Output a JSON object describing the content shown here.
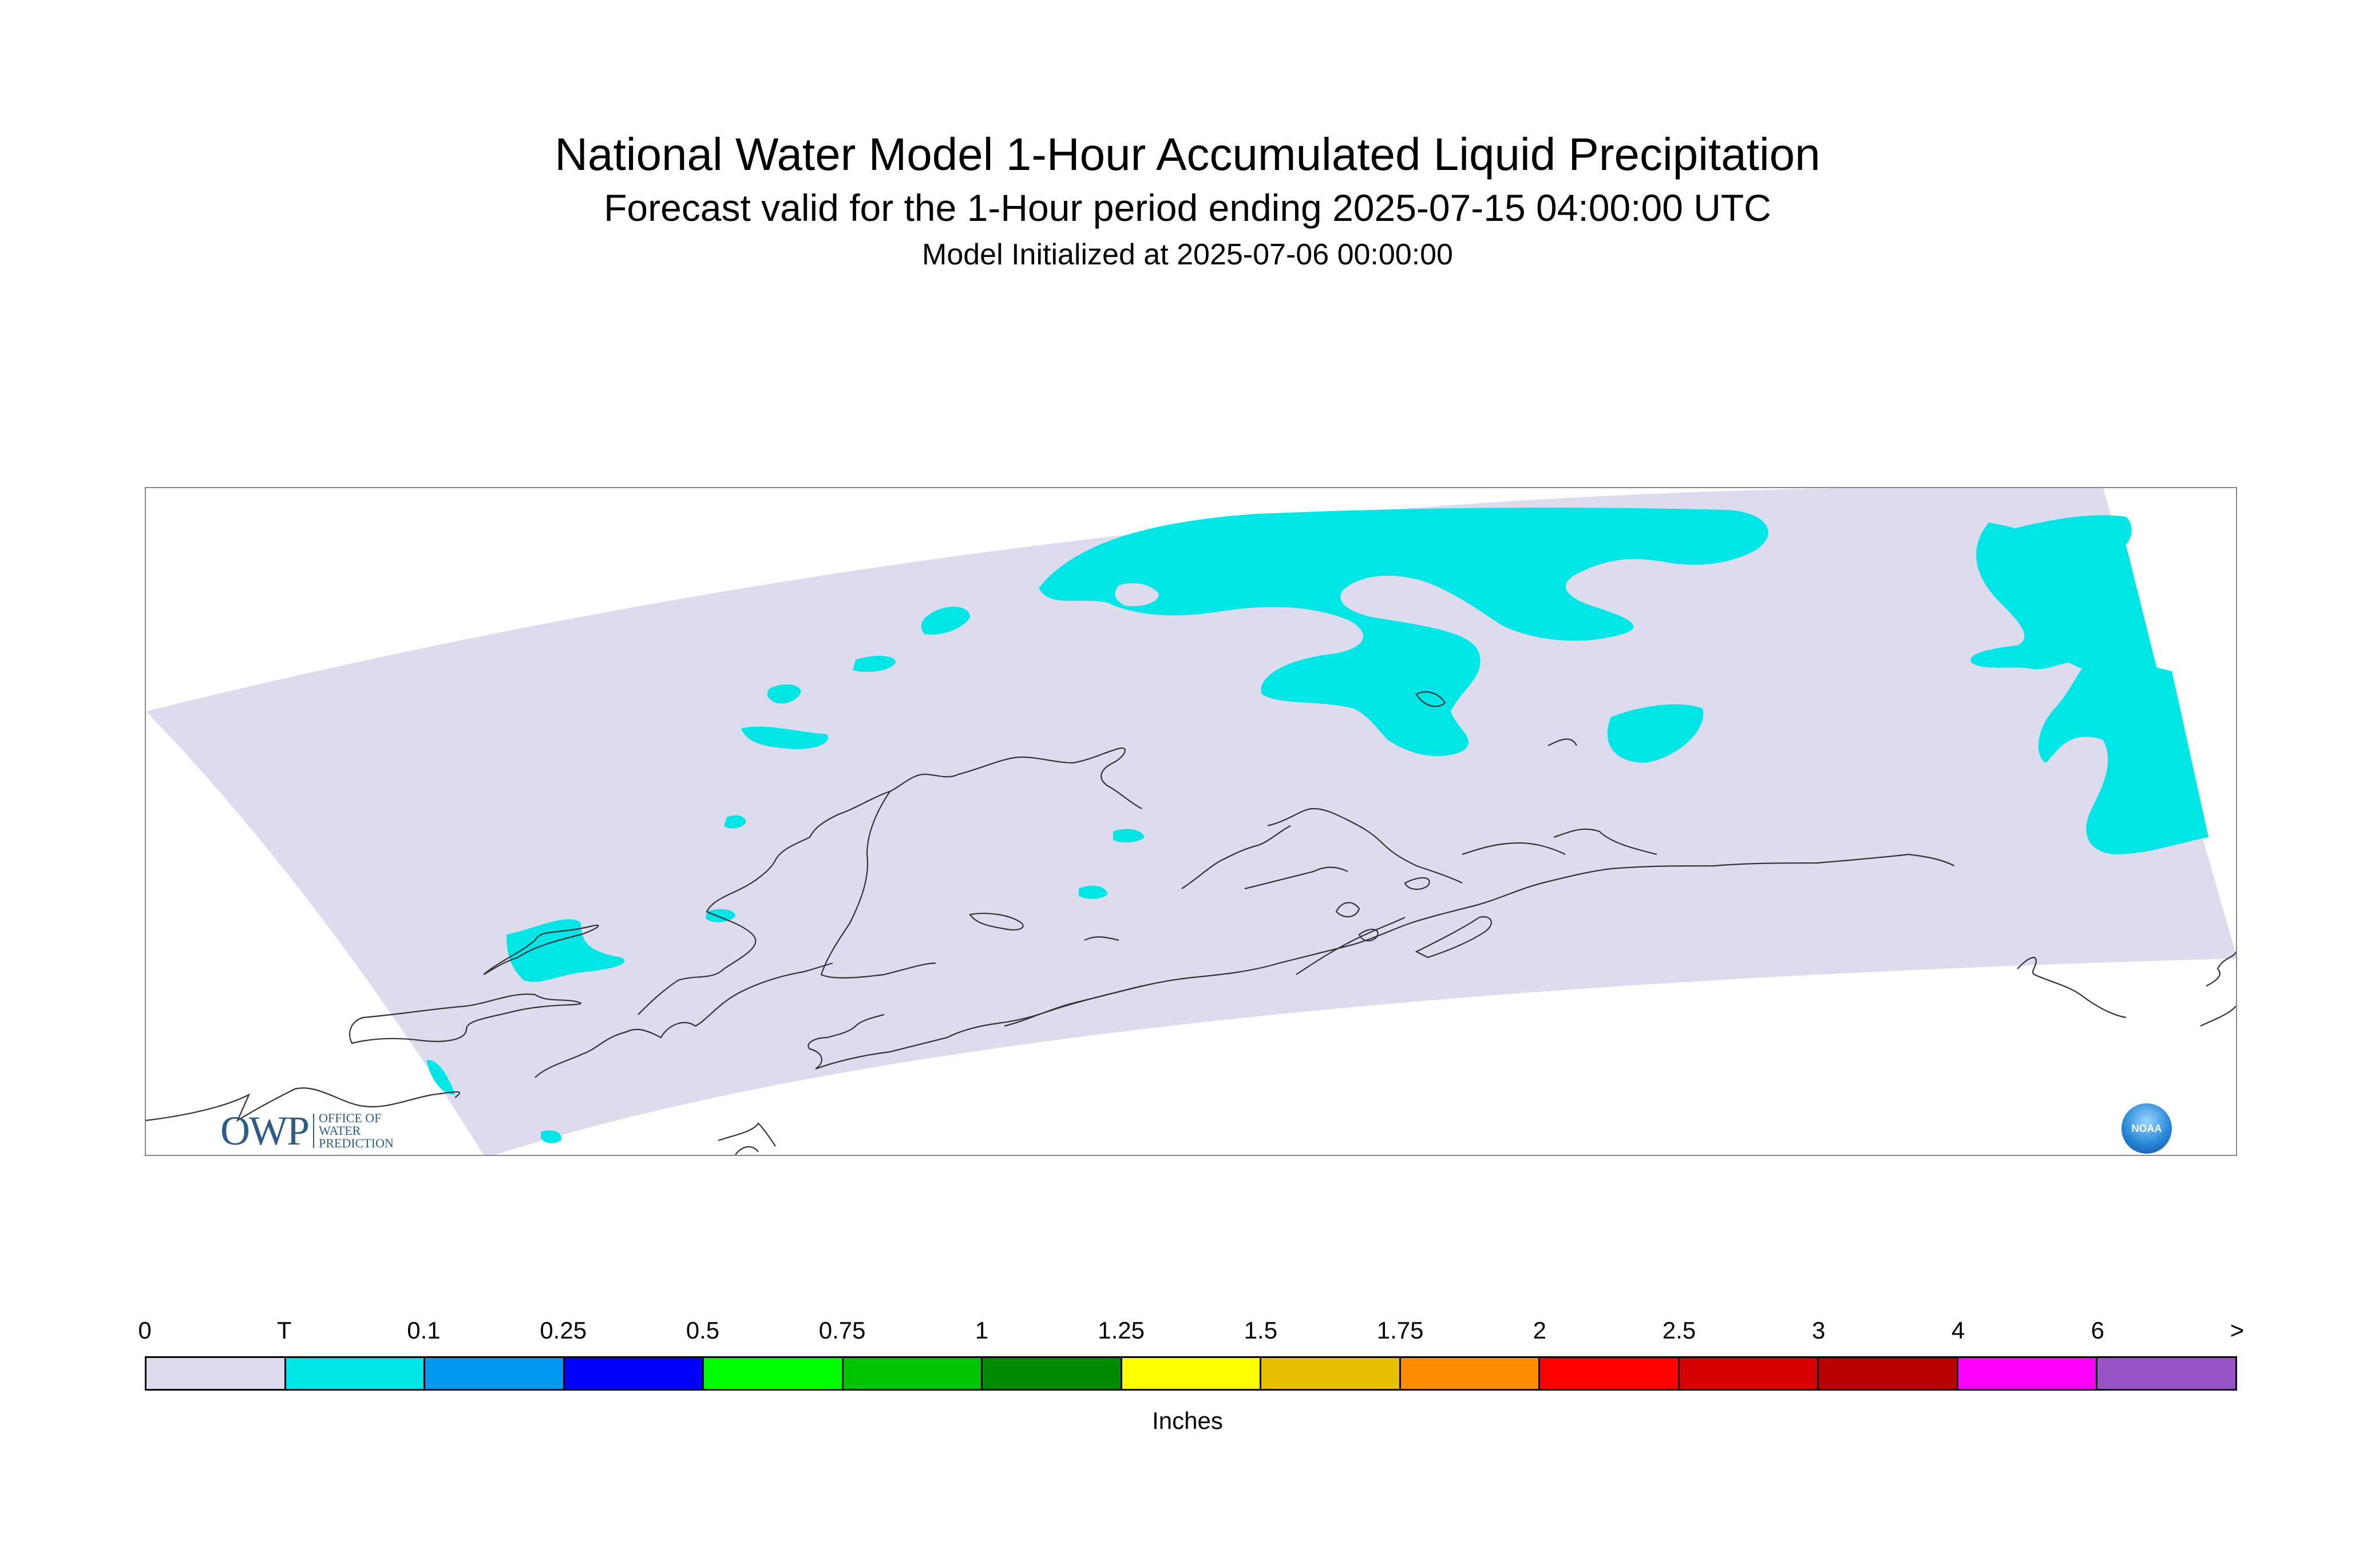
{
  "title": "National Water Model 1-Hour Accumulated Liquid Precipitation",
  "subtitle": "Forecast valid for the 1-Hour period ending 2025-07-15 04:00:00 UTC",
  "init_line": "Model Initialized at 2025-07-06 00:00:00",
  "map": {
    "domain_fill": "#dcdcee",
    "precip_fill": "#00e5e5",
    "coast_color": "#333333"
  },
  "logos": {
    "owp": {
      "mark": "OWP",
      "line1": "OFFICE OF",
      "line2": "WATER",
      "line3": "PREDICTION",
      "color": "#2b5c8a",
      "icon": "owp-logo"
    },
    "noaa": {
      "text": "NOAA",
      "icon": "noaa-logo"
    }
  },
  "colorbar": {
    "units": "Inches",
    "tick_labels": [
      "0",
      "T",
      "0.1",
      "0.25",
      "0.5",
      "0.75",
      "1",
      "1.25",
      "1.5",
      "1.75",
      "2",
      "2.5",
      "3",
      "4",
      "6",
      ">"
    ],
    "colors": [
      "#dcdcee",
      "#00e5e5",
      "#0099f0",
      "#0000ff",
      "#00ff00",
      "#00c400",
      "#008c00",
      "#ffff00",
      "#e6c000",
      "#ff8c00",
      "#ff0000",
      "#d80000",
      "#b80000",
      "#ff00ff",
      "#9955c8"
    ]
  }
}
